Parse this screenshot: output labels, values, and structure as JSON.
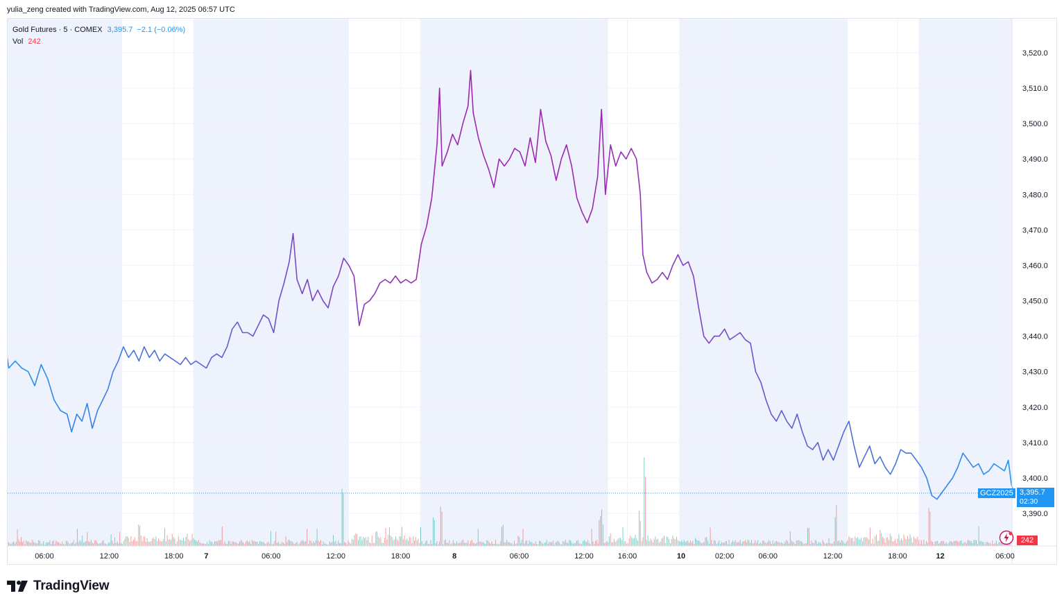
{
  "caption": "yulia_zeng created with TradingView.com, Aug 12, 2025 06:57 UTC",
  "legend": {
    "symbol": "Gold Futures · 5 · COMEX",
    "last": "3,395.7",
    "change": "−2.1 (−0.06%)",
    "vol_label": "Vol",
    "vol_value": "242"
  },
  "price_tag": {
    "ticker": "GCZ2025",
    "price": "3,395.7",
    "countdown": "02:30",
    "vol": "242"
  },
  "brand": "TradingView",
  "colors": {
    "line_start": "#2196f3",
    "line_mid": "#9c27b0",
    "session_shade": "#eef2fd",
    "vol_up": "#26a69a",
    "vol_down": "#ef5350",
    "price_tag": "#2196f3",
    "vol_tag": "#f23645"
  },
  "chart_data": {
    "type": "line",
    "title": "Gold Futures · 5 · COMEX",
    "ylim": [
      3386,
      3528
    ],
    "y_ticks": [
      3390,
      3400,
      3410,
      3420,
      3430,
      3440,
      3450,
      3460,
      3470,
      3480,
      3490,
      3500,
      3510,
      3520
    ],
    "y_tick_labels": [
      "3,390.0",
      "3,400.0",
      "3,410.0",
      "3,420.0",
      "3,430.0",
      "3,440.0",
      "3,450.0",
      "3,460.0",
      "3,470.0",
      "3,480.0",
      "3,490.0",
      "3,500.0",
      "3,510.0",
      "3,520.0"
    ],
    "x_ticks": [
      {
        "label": "06:00",
        "t": 0.0
      },
      {
        "label": "12:00",
        "t": 1.0
      },
      {
        "label": "18:00",
        "t": 2.0
      },
      {
        "label": "7",
        "t": 2.5
      },
      {
        "label": "06:00",
        "t": 3.5
      },
      {
        "label": "12:00",
        "t": 4.5
      },
      {
        "label": "18:00",
        "t": 5.5
      },
      {
        "label": "8",
        "t": 6.33
      },
      {
        "label": "06:00",
        "t": 7.33
      },
      {
        "label": "12:00",
        "t": 8.33
      },
      {
        "label": "16:00",
        "t": 9.0
      },
      {
        "label": "10",
        "t": 9.83
      },
      {
        "label": "02:00",
        "t": 10.5
      },
      {
        "label": "06:00",
        "t": 11.17
      },
      {
        "label": "12:00",
        "t": 12.17
      },
      {
        "label": "18:00",
        "t": 13.17
      },
      {
        "label": "12",
        "t": 13.83
      },
      {
        "label": "06:00",
        "t": 14.83
      }
    ],
    "session_bands": [
      [
        -0.6,
        1.2
      ],
      [
        2.3,
        4.7
      ],
      [
        5.8,
        8.7
      ],
      [
        9.8,
        12.4
      ],
      [
        13.5,
        14.95
      ]
    ],
    "last_price": 3395.7,
    "series": [
      {
        "values": [
          [
            -0.6,
            3437
          ],
          [
            -0.55,
            3431
          ],
          [
            -0.45,
            3433
          ],
          [
            -0.35,
            3431
          ],
          [
            -0.25,
            3430
          ],
          [
            -0.15,
            3426
          ],
          [
            -0.05,
            3432
          ],
          [
            0.05,
            3428
          ],
          [
            0.15,
            3422
          ],
          [
            0.25,
            3419
          ],
          [
            0.35,
            3418
          ],
          [
            0.42,
            3413
          ],
          [
            0.5,
            3418
          ],
          [
            0.58,
            3416
          ],
          [
            0.66,
            3421
          ],
          [
            0.74,
            3414
          ],
          [
            0.82,
            3419
          ],
          [
            0.9,
            3422
          ],
          [
            0.98,
            3425
          ],
          [
            1.06,
            3430
          ],
          [
            1.14,
            3433
          ],
          [
            1.22,
            3437
          ],
          [
            1.3,
            3434
          ],
          [
            1.38,
            3436
          ],
          [
            1.46,
            3433
          ],
          [
            1.54,
            3437
          ],
          [
            1.62,
            3434
          ],
          [
            1.7,
            3436
          ],
          [
            1.78,
            3433
          ],
          [
            1.86,
            3435
          ],
          [
            1.94,
            3434
          ],
          [
            2.02,
            3433
          ],
          [
            2.1,
            3432
          ],
          [
            2.18,
            3434
          ],
          [
            2.26,
            3432
          ],
          [
            2.34,
            3433
          ],
          [
            2.42,
            3432
          ],
          [
            2.5,
            3431
          ],
          [
            2.58,
            3434
          ],
          [
            2.66,
            3435
          ],
          [
            2.74,
            3434
          ],
          [
            2.82,
            3437
          ],
          [
            2.9,
            3442
          ],
          [
            2.98,
            3444
          ],
          [
            3.06,
            3441
          ],
          [
            3.14,
            3441
          ],
          [
            3.22,
            3440
          ],
          [
            3.3,
            3443
          ],
          [
            3.38,
            3446
          ],
          [
            3.46,
            3445
          ],
          [
            3.54,
            3441
          ],
          [
            3.62,
            3450
          ],
          [
            3.7,
            3455
          ],
          [
            3.78,
            3461
          ],
          [
            3.84,
            3469
          ],
          [
            3.9,
            3456
          ],
          [
            3.98,
            3452
          ],
          [
            4.06,
            3456
          ],
          [
            4.14,
            3450
          ],
          [
            4.22,
            3453
          ],
          [
            4.3,
            3450
          ],
          [
            4.38,
            3448
          ],
          [
            4.46,
            3454
          ],
          [
            4.54,
            3457
          ],
          [
            4.62,
            3462
          ],
          [
            4.7,
            3460
          ],
          [
            4.78,
            3457
          ],
          [
            4.86,
            3443
          ],
          [
            4.94,
            3449
          ],
          [
            5.02,
            3450
          ],
          [
            5.1,
            3452
          ],
          [
            5.18,
            3455
          ],
          [
            5.26,
            3456
          ],
          [
            5.34,
            3455
          ],
          [
            5.42,
            3457
          ],
          [
            5.5,
            3455
          ],
          [
            5.58,
            3456
          ],
          [
            5.66,
            3455
          ],
          [
            5.74,
            3456
          ],
          [
            5.82,
            3466
          ],
          [
            5.9,
            3471
          ],
          [
            5.98,
            3479
          ],
          [
            6.06,
            3494
          ],
          [
            6.1,
            3510
          ],
          [
            6.14,
            3488
          ],
          [
            6.22,
            3492
          ],
          [
            6.3,
            3497
          ],
          [
            6.38,
            3494
          ],
          [
            6.46,
            3500
          ],
          [
            6.54,
            3505
          ],
          [
            6.58,
            3515
          ],
          [
            6.62,
            3503
          ],
          [
            6.7,
            3496
          ],
          [
            6.78,
            3491
          ],
          [
            6.86,
            3487
          ],
          [
            6.94,
            3482
          ],
          [
            7.02,
            3490
          ],
          [
            7.1,
            3488
          ],
          [
            7.18,
            3490
          ],
          [
            7.26,
            3493
          ],
          [
            7.34,
            3492
          ],
          [
            7.42,
            3488
          ],
          [
            7.5,
            3496
          ],
          [
            7.58,
            3489
          ],
          [
            7.62,
            3496
          ],
          [
            7.66,
            3504
          ],
          [
            7.74,
            3495
          ],
          [
            7.82,
            3491
          ],
          [
            7.9,
            3484
          ],
          [
            7.98,
            3490
          ],
          [
            8.06,
            3494
          ],
          [
            8.14,
            3488
          ],
          [
            8.22,
            3479
          ],
          [
            8.3,
            3475
          ],
          [
            8.38,
            3472
          ],
          [
            8.46,
            3476
          ],
          [
            8.54,
            3485
          ],
          [
            8.6,
            3504
          ],
          [
            8.66,
            3480
          ],
          [
            8.74,
            3494
          ],
          [
            8.82,
            3488
          ],
          [
            8.9,
            3492
          ],
          [
            8.98,
            3490
          ],
          [
            9.06,
            3493
          ],
          [
            9.14,
            3490
          ],
          [
            9.2,
            3480
          ],
          [
            9.24,
            3463
          ],
          [
            9.3,
            3458
          ],
          [
            9.38,
            3455
          ],
          [
            9.46,
            3456
          ],
          [
            9.54,
            3458
          ],
          [
            9.62,
            3456
          ],
          [
            9.7,
            3460
          ],
          [
            9.78,
            3463
          ],
          [
            9.86,
            3460
          ],
          [
            9.94,
            3461
          ],
          [
            10.02,
            3457
          ],
          [
            10.1,
            3448
          ],
          [
            10.18,
            3440
          ],
          [
            10.26,
            3438
          ],
          [
            10.34,
            3440
          ],
          [
            10.42,
            3440
          ],
          [
            10.5,
            3442
          ],
          [
            10.58,
            3439
          ],
          [
            10.66,
            3440
          ],
          [
            10.74,
            3441
          ],
          [
            10.82,
            3439
          ],
          [
            10.9,
            3438
          ],
          [
            10.98,
            3430
          ],
          [
            11.06,
            3427
          ],
          [
            11.14,
            3422
          ],
          [
            11.22,
            3418
          ],
          [
            11.3,
            3416
          ],
          [
            11.38,
            3419
          ],
          [
            11.46,
            3416
          ],
          [
            11.54,
            3414
          ],
          [
            11.62,
            3418
          ],
          [
            11.7,
            3413
          ],
          [
            11.78,
            3409
          ],
          [
            11.86,
            3408
          ],
          [
            11.94,
            3410
          ],
          [
            12.02,
            3405
          ],
          [
            12.1,
            3408
          ],
          [
            12.18,
            3405
          ],
          [
            12.26,
            3409
          ],
          [
            12.34,
            3413
          ],
          [
            12.42,
            3416
          ],
          [
            12.5,
            3409
          ],
          [
            12.58,
            3403
          ],
          [
            12.66,
            3406
          ],
          [
            12.74,
            3409
          ],
          [
            12.82,
            3404
          ],
          [
            12.9,
            3406
          ],
          [
            12.98,
            3403
          ],
          [
            13.06,
            3401
          ],
          [
            13.14,
            3404
          ],
          [
            13.22,
            3408
          ],
          [
            13.3,
            3407
          ],
          [
            13.38,
            3407
          ],
          [
            13.46,
            3405
          ],
          [
            13.54,
            3403
          ],
          [
            13.62,
            3400
          ],
          [
            13.7,
            3395
          ],
          [
            13.78,
            3394
          ],
          [
            13.86,
            3396
          ],
          [
            13.94,
            3398
          ],
          [
            14.02,
            3400
          ],
          [
            14.1,
            3403
          ],
          [
            14.18,
            3407
          ],
          [
            14.26,
            3405
          ],
          [
            14.34,
            3403
          ],
          [
            14.42,
            3404
          ],
          [
            14.5,
            3401
          ],
          [
            14.58,
            3402
          ],
          [
            14.66,
            3404
          ],
          [
            14.74,
            3403
          ],
          [
            14.82,
            3402
          ],
          [
            14.88,
            3405
          ],
          [
            14.93,
            3398
          ],
          [
            14.97,
            3395.7
          ]
        ]
      }
    ]
  }
}
